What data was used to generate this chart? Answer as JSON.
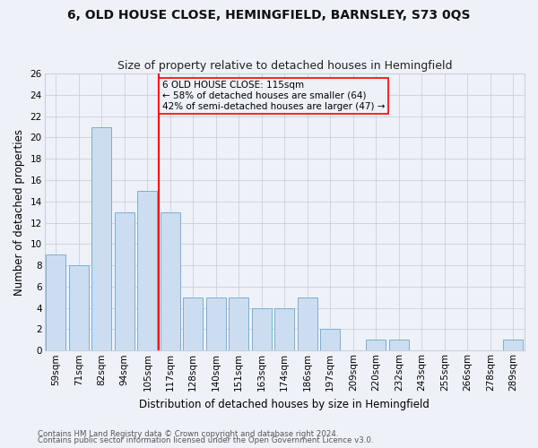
{
  "title": "6, OLD HOUSE CLOSE, HEMINGFIELD, BARNSLEY, S73 0QS",
  "subtitle": "Size of property relative to detached houses in Hemingfield",
  "xlabel": "Distribution of detached houses by size in Hemingfield",
  "ylabel": "Number of detached properties",
  "categories": [
    "59sqm",
    "71sqm",
    "82sqm",
    "94sqm",
    "105sqm",
    "117sqm",
    "128sqm",
    "140sqm",
    "151sqm",
    "163sqm",
    "174sqm",
    "186sqm",
    "197sqm",
    "209sqm",
    "220sqm",
    "232sqm",
    "243sqm",
    "255sqm",
    "266sqm",
    "278sqm",
    "289sqm"
  ],
  "values": [
    9,
    8,
    21,
    13,
    15,
    13,
    5,
    5,
    5,
    4,
    4,
    5,
    2,
    0,
    1,
    1,
    0,
    0,
    0,
    0,
    1
  ],
  "bar_color": "#ccddf0",
  "bar_edge_color": "#7aaed4",
  "marker_index": 5,
  "marker_label": "6 OLD HOUSE CLOSE: 115sqm",
  "annotation_line1": "← 58% of detached houses are smaller (64)",
  "annotation_line2": "42% of semi-detached houses are larger (47) →",
  "marker_color": "red",
  "ylim": [
    0,
    26
  ],
  "yticks": [
    0,
    2,
    4,
    6,
    8,
    10,
    12,
    14,
    16,
    18,
    20,
    22,
    24,
    26
  ],
  "footer1": "Contains HM Land Registry data © Crown copyright and database right 2024.",
  "footer2": "Contains public sector information licensed under the Open Government Licence v3.0.",
  "bg_color": "#eef2f8",
  "grid_color": "#c8d0dc",
  "title_fontsize": 10,
  "subtitle_fontsize": 9,
  "axis_label_fontsize": 8.5,
  "tick_fontsize": 7.5,
  "annotation_fontsize": 7.5
}
